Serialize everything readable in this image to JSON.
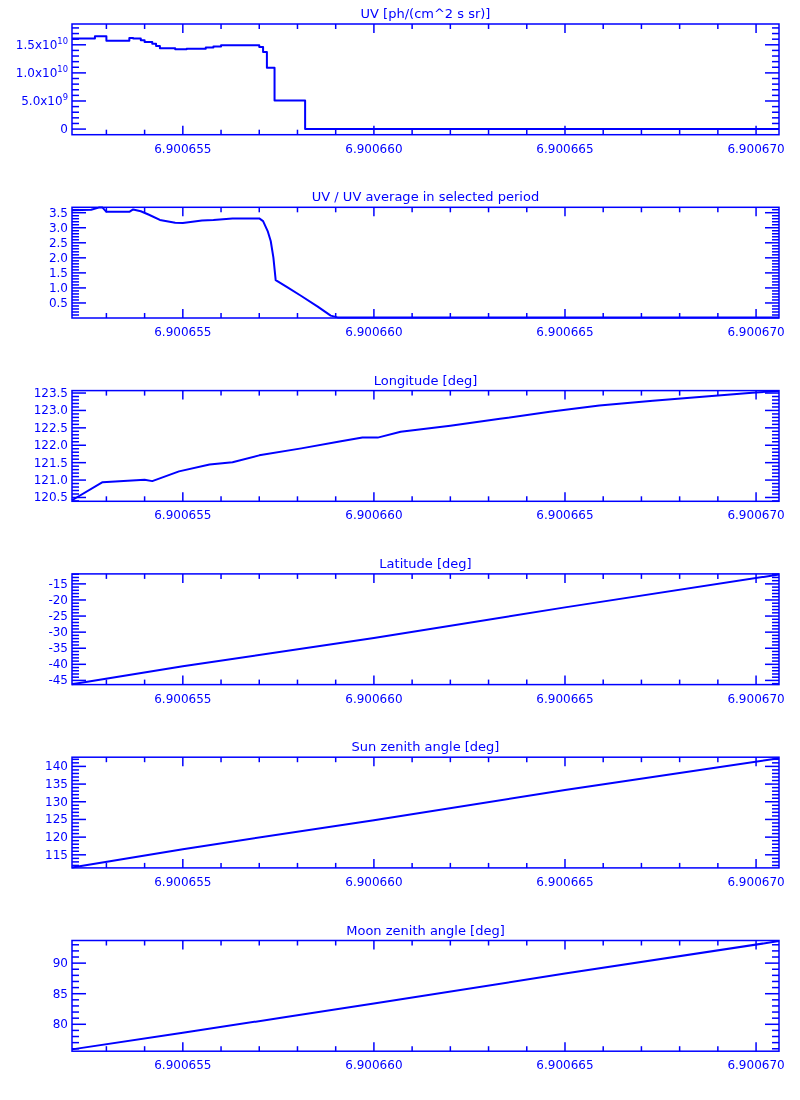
{
  "chart_data": [
    {
      "type": "step",
      "title": "UV [ph/(cm^2 s sr)]",
      "color": "#0000ff",
      "xlim": [
        6.9006521,
        6.9006706
      ],
      "ylim": [
        -1000000000.0,
        18700000000.0
      ],
      "x": [
        6.9006521,
        6.9006527,
        6.900653,
        6.9006536,
        6.9006537,
        6.9006539,
        6.900654,
        6.9006542,
        6.9006543,
        6.9006544,
        6.9006548,
        6.9006551,
        6.9006556,
        6.9006558,
        6.900656,
        6.900657,
        6.9006571,
        6.9006572,
        6.9006574,
        6.9006582,
        6.9006706
      ],
      "values": [
        16100000000.0,
        16500000000.0,
        15700000000.0,
        16200000000.0,
        16100000000.0,
        15800000000.0,
        15500000000.0,
        15200000000.0,
        14800000000.0,
        14400000000.0,
        14200000000.0,
        14300000000.0,
        14500000000.0,
        14700000000.0,
        14900000000.0,
        14600000000.0,
        13700000000.0,
        10900000000.0,
        5100000000.0,
        0,
        0
      ],
      "xticks": [
        {
          "value": 6.900653,
          "label": null
        },
        {
          "value": 6.900654,
          "label": null
        },
        {
          "value": 6.900655,
          "label": "6.900655"
        },
        {
          "value": 6.900656,
          "label": null
        },
        {
          "value": 6.900657,
          "label": null
        },
        {
          "value": 6.900658,
          "label": null
        },
        {
          "value": 6.900659,
          "label": null
        },
        {
          "value": 6.90066,
          "label": "6.900660"
        },
        {
          "value": 6.900661,
          "label": null
        },
        {
          "value": 6.900662,
          "label": null
        },
        {
          "value": 6.900663,
          "label": null
        },
        {
          "value": 6.900664,
          "label": null
        },
        {
          "value": 6.900665,
          "label": "6.900665"
        },
        {
          "value": 6.900666,
          "label": null
        },
        {
          "value": 6.900667,
          "label": null
        },
        {
          "value": 6.900668,
          "label": null
        },
        {
          "value": 6.900669,
          "label": null
        },
        {
          "value": 6.90067,
          "label": "6.900670"
        }
      ],
      "yticks": [
        0,
        {
          "value": 1000000000.0,
          "label": null
        },
        {
          "value": 2000000000.0,
          "label": null
        },
        {
          "value": 3000000000.0,
          "label": null
        },
        {
          "value": 4000000000.0,
          "label": null
        },
        {
          "value": 5000000000.0,
          "label": "5.0x10$^{9}$"
        },
        {
          "value": 6000000000.0,
          "label": null
        },
        {
          "value": 7000000000.0,
          "label": null
        },
        {
          "value": 8000000000.0,
          "label": null
        },
        {
          "value": 9000000000.0,
          "label": null
        },
        {
          "value": 10000000000.0,
          "label": "1.0x10$^{10}$"
        },
        {
          "value": 11000000000.0,
          "label": null
        },
        {
          "value": 12000000000.0,
          "label": null
        },
        {
          "value": 13000000000.0,
          "label": null
        },
        {
          "value": 14000000000.0,
          "label": null
        },
        {
          "value": 15000000000.0,
          "label": "1.5x10$^{10}$"
        },
        {
          "value": 16000000000.0,
          "label": null
        },
        {
          "value": 17000000000.0,
          "label": null
        },
        {
          "value": 18000000000.0,
          "label": null
        }
      ]
    },
    {
      "type": "line",
      "title": "UV / UV average in selected period",
      "color": "#0000ff",
      "xlim": [
        6.9006521,
        6.9006706
      ],
      "ylim": [
        0,
        3.68
      ],
      "x": [
        6.9006521,
        6.9006526,
        6.9006528,
        6.9006529,
        6.900653,
        6.9006536,
        6.9006537,
        6.9006539,
        6.9006541,
        6.9006544,
        6.9006548,
        6.900655,
        6.9006552,
        6.9006555,
        6.9006558,
        6.9006563,
        6.900657,
        6.9006571,
        6.90065722,
        6.9006573,
        6.90065737,
        6.90065743,
        6.90065774,
        6.90065809,
        6.90065853,
        6.90065887,
        6.90065905,
        6.9006594,
        6.9006706
      ],
      "values": [
        3.58,
        3.6,
        3.67,
        3.67,
        3.53,
        3.53,
        3.61,
        3.55,
        3.44,
        3.26,
        3.17,
        3.16,
        3.19,
        3.24,
        3.26,
        3.31,
        3.31,
        3.22,
        2.89,
        2.56,
        2.01,
        1.26,
        1.02,
        0.74,
        0.38,
        0.08,
        0.02,
        0.02,
        0.02
      ],
      "xticks": [
        {
          "value": 6.900653,
          "label": null
        },
        {
          "value": 6.900654,
          "label": null
        },
        {
          "value": 6.900655,
          "label": "6.900655"
        },
        {
          "value": 6.900656,
          "label": null
        },
        {
          "value": 6.900657,
          "label": null
        },
        {
          "value": 6.900658,
          "label": null
        },
        {
          "value": 6.900659,
          "label": null
        },
        {
          "value": 6.90066,
          "label": "6.900660"
        },
        {
          "value": 6.900661,
          "label": null
        },
        {
          "value": 6.900662,
          "label": null
        },
        {
          "value": 6.900663,
          "label": null
        },
        {
          "value": 6.900664,
          "label": null
        },
        {
          "value": 6.900665,
          "label": "6.900665"
        },
        {
          "value": 6.900666,
          "label": null
        },
        {
          "value": 6.900667,
          "label": null
        },
        {
          "value": 6.900668,
          "label": null
        },
        {
          "value": 6.900669,
          "label": null
        },
        {
          "value": 6.90067,
          "label": "6.900670"
        }
      ],
      "yticks": [
        {
          "value": 0.1,
          "label": null
        },
        {
          "value": 0.2,
          "label": null
        },
        {
          "value": 0.3,
          "label": null
        },
        {
          "value": 0.4,
          "label": null
        },
        0.5,
        {
          "value": 0.6,
          "label": null
        },
        {
          "value": 0.7,
          "label": null
        },
        {
          "value": 0.8,
          "label": null
        },
        {
          "value": 0.9,
          "label": null
        },
        {
          "value": 1,
          "label": "1.0"
        },
        {
          "value": 1.1,
          "label": null
        },
        {
          "value": 1.2,
          "label": null
        },
        {
          "value": 1.3,
          "label": null
        },
        {
          "value": 1.4,
          "label": null
        },
        1.5,
        {
          "value": 1.6,
          "label": null
        },
        {
          "value": 1.7,
          "label": null
        },
        {
          "value": 1.8,
          "label": null
        },
        {
          "value": 1.9,
          "label": null
        },
        {
          "value": 2,
          "label": "2.0"
        },
        {
          "value": 2.1,
          "label": null
        },
        {
          "value": 2.2,
          "label": null
        },
        {
          "value": 2.3,
          "label": null
        },
        {
          "value": 2.4,
          "label": null
        },
        2.5,
        {
          "value": 2.6,
          "label": null
        },
        {
          "value": 2.7,
          "label": null
        },
        {
          "value": 2.8,
          "label": null
        },
        {
          "value": 2.9,
          "label": null
        },
        {
          "value": 3,
          "label": "3.0"
        },
        {
          "value": 3.1,
          "label": null
        },
        {
          "value": 3.2,
          "label": null
        },
        {
          "value": 3.3,
          "label": null
        },
        {
          "value": 3.4,
          "label": null
        },
        3.5,
        {
          "value": 3.6,
          "label": null
        }
      ]
    },
    {
      "type": "line",
      "title": "Longitude [deg]",
      "color": "#0000ff",
      "xlim": [
        6.9006521,
        6.9006706
      ],
      "ylim": [
        120.39,
        123.57
      ],
      "x": [
        6.9006521,
        6.9006529,
        6.900654,
        6.9006542,
        6.9006549,
        6.9006557,
        6.9006563,
        6.900657,
        6.9006581,
        6.9006591,
        6.9006597,
        6.9006601,
        6.9006607,
        6.900662,
        6.9006633,
        6.9006646,
        6.9006659,
        6.9006673,
        6.9006686,
        6.9006699,
        6.9006706
      ],
      "values": [
        120.42,
        120.94,
        121.01,
        120.97,
        121.25,
        121.45,
        121.51,
        121.71,
        121.91,
        122.11,
        122.22,
        122.22,
        122.39,
        122.56,
        122.76,
        122.96,
        123.14,
        123.28,
        123.39,
        123.51,
        123.56
      ],
      "xticks": [
        {
          "value": 6.900653,
          "label": null
        },
        {
          "value": 6.900654,
          "label": null
        },
        {
          "value": 6.900655,
          "label": "6.900655"
        },
        {
          "value": 6.900656,
          "label": null
        },
        {
          "value": 6.900657,
          "label": null
        },
        {
          "value": 6.900658,
          "label": null
        },
        {
          "value": 6.900659,
          "label": null
        },
        {
          "value": 6.90066,
          "label": "6.900660"
        },
        {
          "value": 6.900661,
          "label": null
        },
        {
          "value": 6.900662,
          "label": null
        },
        {
          "value": 6.900663,
          "label": null
        },
        {
          "value": 6.900664,
          "label": null
        },
        {
          "value": 6.900665,
          "label": "6.900665"
        },
        {
          "value": 6.900666,
          "label": null
        },
        {
          "value": 6.900667,
          "label": null
        },
        {
          "value": 6.900668,
          "label": null
        },
        {
          "value": 6.900669,
          "label": null
        },
        {
          "value": 6.90067,
          "label": "6.900670"
        }
      ],
      "yticks": [
        {
          "value": 120.4,
          "label": null
        },
        120.5,
        {
          "value": 120.6,
          "label": null
        },
        {
          "value": 120.7,
          "label": null
        },
        {
          "value": 120.8,
          "label": null
        },
        {
          "value": 120.9,
          "label": null
        },
        {
          "value": 121,
          "label": "121.0"
        },
        {
          "value": 121.1,
          "label": null
        },
        {
          "value": 121.2,
          "label": null
        },
        {
          "value": 121.3,
          "label": null
        },
        {
          "value": 121.4,
          "label": null
        },
        121.5,
        {
          "value": 121.6,
          "label": null
        },
        {
          "value": 121.7,
          "label": null
        },
        {
          "value": 121.8,
          "label": null
        },
        {
          "value": 121.9,
          "label": null
        },
        {
          "value": 122,
          "label": "122.0"
        },
        {
          "value": 122.1,
          "label": null
        },
        {
          "value": 122.2,
          "label": null
        },
        {
          "value": 122.3,
          "label": null
        },
        {
          "value": 122.4,
          "label": null
        },
        122.5,
        {
          "value": 122.6,
          "label": null
        },
        {
          "value": 122.7,
          "label": null
        },
        {
          "value": 122.8,
          "label": null
        },
        {
          "value": 122.9,
          "label": null
        },
        {
          "value": 123,
          "label": "123.0"
        },
        {
          "value": 123.1,
          "label": null
        },
        {
          "value": 123.2,
          "label": null
        },
        {
          "value": 123.3,
          "label": null
        },
        {
          "value": 123.4,
          "label": null
        },
        123.5
      ]
    },
    {
      "type": "line",
      "title": "Latitude [deg]",
      "color": "#0000ff",
      "xlim": [
        6.9006521,
        6.9006706
      ],
      "ylim": [
        -46.3,
        -11.9
      ],
      "x": [
        6.9006521,
        6.900655,
        6.90066,
        6.900665,
        6.9006706
      ],
      "values": [
        -46.2,
        -40.6,
        -31.8,
        -22.3,
        -12.1
      ],
      "xticks": [
        {
          "value": 6.900653,
          "label": null
        },
        {
          "value": 6.900654,
          "label": null
        },
        {
          "value": 6.900655,
          "label": "6.900655"
        },
        {
          "value": 6.900656,
          "label": null
        },
        {
          "value": 6.900657,
          "label": null
        },
        {
          "value": 6.900658,
          "label": null
        },
        {
          "value": 6.900659,
          "label": null
        },
        {
          "value": 6.90066,
          "label": "6.900660"
        },
        {
          "value": 6.900661,
          "label": null
        },
        {
          "value": 6.900662,
          "label": null
        },
        {
          "value": 6.900663,
          "label": null
        },
        {
          "value": 6.900664,
          "label": null
        },
        {
          "value": 6.900665,
          "label": "6.900665"
        },
        {
          "value": 6.900666,
          "label": null
        },
        {
          "value": 6.900667,
          "label": null
        },
        {
          "value": 6.900668,
          "label": null
        },
        {
          "value": 6.900669,
          "label": null
        },
        {
          "value": 6.90067,
          "label": "6.900670"
        }
      ],
      "yticks": [
        {
          "value": -46,
          "label": null
        },
        -45,
        {
          "value": -44,
          "label": null
        },
        {
          "value": -43,
          "label": null
        },
        {
          "value": -42,
          "label": null
        },
        {
          "value": -41,
          "label": null
        },
        -40,
        {
          "value": -39,
          "label": null
        },
        {
          "value": -38,
          "label": null
        },
        {
          "value": -37,
          "label": null
        },
        {
          "value": -36,
          "label": null
        },
        -35,
        {
          "value": -34,
          "label": null
        },
        {
          "value": -33,
          "label": null
        },
        {
          "value": -32,
          "label": null
        },
        {
          "value": -31,
          "label": null
        },
        -30,
        {
          "value": -29,
          "label": null
        },
        {
          "value": -28,
          "label": null
        },
        {
          "value": -27,
          "label": null
        },
        {
          "value": -26,
          "label": null
        },
        -25,
        {
          "value": -24,
          "label": null
        },
        {
          "value": -23,
          "label": null
        },
        {
          "value": -22,
          "label": null
        },
        {
          "value": -21,
          "label": null
        },
        -20,
        {
          "value": -19,
          "label": null
        },
        {
          "value": -18,
          "label": null
        },
        {
          "value": -17,
          "label": null
        },
        {
          "value": -16,
          "label": null
        },
        -15,
        {
          "value": -14,
          "label": null
        },
        {
          "value": -13,
          "label": null
        },
        {
          "value": -12,
          "label": null
        }
      ]
    },
    {
      "type": "line",
      "title": "Sun zenith angle [deg]",
      "color": "#0000ff",
      "xlim": [
        6.9006521,
        6.9006706
      ],
      "ylim": [
        111.3,
        142.6
      ],
      "x": [
        6.9006521,
        6.900655,
        6.90066,
        6.900665,
        6.9006706
      ],
      "values": [
        111.4,
        116.6,
        124.8,
        133.3,
        142.3
      ],
      "xticks": [
        {
          "value": 6.900653,
          "label": null
        },
        {
          "value": 6.900654,
          "label": null
        },
        {
          "value": 6.900655,
          "label": "6.900655"
        },
        {
          "value": 6.900656,
          "label": null
        },
        {
          "value": 6.900657,
          "label": null
        },
        {
          "value": 6.900658,
          "label": null
        },
        {
          "value": 6.900659,
          "label": null
        },
        {
          "value": 6.90066,
          "label": "6.900660"
        },
        {
          "value": 6.900661,
          "label": null
        },
        {
          "value": 6.900662,
          "label": null
        },
        {
          "value": 6.900663,
          "label": null
        },
        {
          "value": 6.900664,
          "label": null
        },
        {
          "value": 6.900665,
          "label": "6.900665"
        },
        {
          "value": 6.900666,
          "label": null
        },
        {
          "value": 6.900667,
          "label": null
        },
        {
          "value": 6.900668,
          "label": null
        },
        {
          "value": 6.900669,
          "label": null
        },
        {
          "value": 6.90067,
          "label": "6.900670"
        }
      ],
      "yticks": [
        {
          "value": 112,
          "label": null
        },
        {
          "value": 113,
          "label": null
        },
        {
          "value": 114,
          "label": null
        },
        115,
        {
          "value": 116,
          "label": null
        },
        {
          "value": 117,
          "label": null
        },
        {
          "value": 118,
          "label": null
        },
        {
          "value": 119,
          "label": null
        },
        120,
        {
          "value": 121,
          "label": null
        },
        {
          "value": 122,
          "label": null
        },
        {
          "value": 123,
          "label": null
        },
        {
          "value": 124,
          "label": null
        },
        125,
        {
          "value": 126,
          "label": null
        },
        {
          "value": 127,
          "label": null
        },
        {
          "value": 128,
          "label": null
        },
        {
          "value": 129,
          "label": null
        },
        130,
        {
          "value": 131,
          "label": null
        },
        {
          "value": 132,
          "label": null
        },
        {
          "value": 133,
          "label": null
        },
        {
          "value": 134,
          "label": null
        },
        135,
        {
          "value": 136,
          "label": null
        },
        {
          "value": 137,
          "label": null
        },
        {
          "value": 138,
          "label": null
        },
        {
          "value": 139,
          "label": null
        },
        140,
        {
          "value": 141,
          "label": null
        },
        {
          "value": 142,
          "label": null
        }
      ]
    },
    {
      "type": "line",
      "title": "Moon zenith angle [deg]",
      "color": "#0000ff",
      "xlim": [
        6.9006521,
        6.9006706
      ],
      "ylim": [
        75.6,
        93.7
      ],
      "x": [
        6.9006521,
        6.900655,
        6.90066,
        6.900665,
        6.9006706
      ],
      "values": [
        75.9,
        78.6,
        83.4,
        88.3,
        93.6
      ],
      "xticks": [
        {
          "value": 6.900653,
          "label": null
        },
        {
          "value": 6.900654,
          "label": null
        },
        {
          "value": 6.900655,
          "label": "6.900655"
        },
        {
          "value": 6.900656,
          "label": null
        },
        {
          "value": 6.900657,
          "label": null
        },
        {
          "value": 6.900658,
          "label": null
        },
        {
          "value": 6.900659,
          "label": null
        },
        {
          "value": 6.90066,
          "label": "6.900660"
        },
        {
          "value": 6.900661,
          "label": null
        },
        {
          "value": 6.900662,
          "label": null
        },
        {
          "value": 6.900663,
          "label": null
        },
        {
          "value": 6.900664,
          "label": null
        },
        {
          "value": 6.900665,
          "label": "6.900665"
        },
        {
          "value": 6.900666,
          "label": null
        },
        {
          "value": 6.900667,
          "label": null
        },
        {
          "value": 6.900668,
          "label": null
        },
        {
          "value": 6.900669,
          "label": null
        },
        {
          "value": 6.90067,
          "label": "6.900670"
        }
      ],
      "yticks": [
        {
          "value": 76,
          "label": null
        },
        {
          "value": 77,
          "label": null
        },
        {
          "value": 78,
          "label": null
        },
        {
          "value": 79,
          "label": null
        },
        80,
        {
          "value": 81,
          "label": null
        },
        {
          "value": 82,
          "label": null
        },
        {
          "value": 83,
          "label": null
        },
        {
          "value": 84,
          "label": null
        },
        85,
        {
          "value": 86,
          "label": null
        },
        {
          "value": 87,
          "label": null
        },
        {
          "value": 88,
          "label": null
        },
        {
          "value": 89,
          "label": null
        },
        90,
        {
          "value": 91,
          "label": null
        },
        {
          "value": 92,
          "label": null
        },
        {
          "value": 93,
          "label": null
        }
      ]
    }
  ]
}
